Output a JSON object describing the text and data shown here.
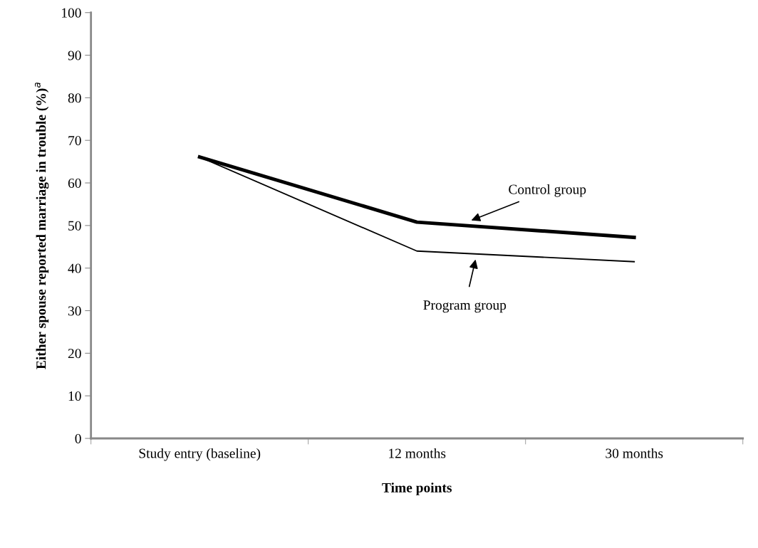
{
  "chart_data": {
    "type": "line",
    "xlabel": "Time points",
    "ylabel": "Either spouse reported marriage in trouble (%)$^{a}$",
    "categories": [
      "Study entry (baseline)",
      "12 months",
      "30 months"
    ],
    "series": [
      {
        "name": "Control group",
        "color": "#000000",
        "values": [
          66.1,
          50.8,
          47.2
        ]
      },
      {
        "name": "Program group",
        "color": "#000000",
        "values": [
          66.1,
          44.0,
          41.5
        ]
      }
    ],
    "ylim": [
      0,
      100
    ],
    "yticks": [
      0,
      10,
      20,
      30,
      40,
      50,
      60,
      70,
      80,
      90,
      100
    ],
    "grid": false,
    "marker": "none",
    "line_style": "solid"
  }
}
